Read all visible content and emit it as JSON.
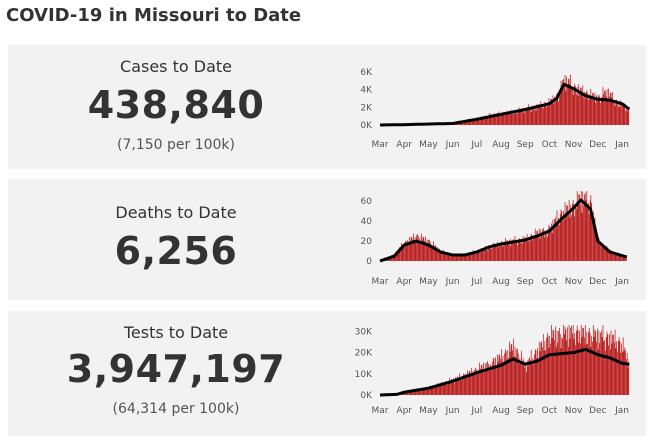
{
  "page": {
    "title": "COVID-19 in Missouri to Date"
  },
  "colors": {
    "bar": "#b30000",
    "line": "#000000",
    "panel": "#f2f2f2"
  },
  "panels": [
    {
      "label": "Cases to Date",
      "value": "438,840",
      "sub": "(7,150 per 100k)"
    },
    {
      "label": "Deaths to Date",
      "value": "6,256",
      "sub": ""
    },
    {
      "label": "Tests to Date",
      "value": "3,947,197",
      "sub": "(64,314 per 100k)"
    }
  ],
  "chart_data": [
    {
      "type": "bar",
      "title": "",
      "months": [
        "Mar",
        "Apr",
        "May",
        "Jun",
        "Jul",
        "Aug",
        "Sep",
        "Oct",
        "Nov",
        "Dec",
        "Jan"
      ],
      "ylim": [
        0,
        7000
      ],
      "yticks": [
        0,
        2000,
        4000,
        6000
      ],
      "ytick_labels": [
        "0K",
        "2K",
        "4K",
        "6K"
      ],
      "bar_profile": [
        [
          0,
          0
        ],
        [
          1,
          40
        ],
        [
          2,
          120
        ],
        [
          3,
          180
        ],
        [
          3.7,
          400
        ],
        [
          4,
          700
        ],
        [
          4.5,
          1100
        ],
        [
          5,
          1300
        ],
        [
          5.5,
          1500
        ],
        [
          6,
          1800
        ],
        [
          6.5,
          2100
        ],
        [
          7,
          2600
        ],
        [
          7.4,
          3500
        ],
        [
          7.6,
          5200
        ],
        [
          7.8,
          4800
        ],
        [
          8,
          4300
        ],
        [
          8.5,
          3600
        ],
        [
          9,
          3100
        ],
        [
          9.4,
          3800
        ],
        [
          9.7,
          2700
        ],
        [
          10,
          2300
        ],
        [
          10.3,
          1600
        ]
      ],
      "trend_profile": [
        [
          0,
          0
        ],
        [
          1,
          40
        ],
        [
          2,
          110
        ],
        [
          3,
          170
        ],
        [
          4,
          650
        ],
        [
          5,
          1200
        ],
        [
          6,
          1750
        ],
        [
          7,
          2400
        ],
        [
          7.3,
          3000
        ],
        [
          7.6,
          4600
        ],
        [
          8,
          4100
        ],
        [
          8.5,
          3300
        ],
        [
          9,
          2900
        ],
        [
          9.5,
          2800
        ],
        [
          10,
          2400
        ],
        [
          10.3,
          1800
        ]
      ]
    },
    {
      "type": "bar",
      "title": "",
      "months": [
        "Mar",
        "Apr",
        "May",
        "Jun",
        "Jul",
        "Aug",
        "Sep",
        "Oct",
        "Nov",
        "Dec",
        "Jan"
      ],
      "ylim": [
        0,
        70
      ],
      "yticks": [
        0,
        20,
        40,
        60
      ],
      "ytick_labels": [
        "0",
        "20",
        "40",
        "60"
      ],
      "bar_profile": [
        [
          0,
          0
        ],
        [
          0.5,
          5
        ],
        [
          1,
          18
        ],
        [
          1.5,
          25
        ],
        [
          2,
          20
        ],
        [
          2.5,
          10
        ],
        [
          3,
          5
        ],
        [
          3.5,
          6
        ],
        [
          4,
          10
        ],
        [
          4.5,
          14
        ],
        [
          5,
          18
        ],
        [
          5.5,
          20
        ],
        [
          6,
          22
        ],
        [
          6.5,
          28
        ],
        [
          7,
          33
        ],
        [
          7.5,
          48
        ],
        [
          8,
          56
        ],
        [
          8.3,
          64
        ],
        [
          8.7,
          60
        ],
        [
          9,
          20
        ],
        [
          9.5,
          10
        ],
        [
          10.2,
          3
        ]
      ],
      "trend_profile": [
        [
          0,
          0
        ],
        [
          0.6,
          5
        ],
        [
          1,
          16
        ],
        [
          1.5,
          20
        ],
        [
          2,
          16
        ],
        [
          2.5,
          9
        ],
        [
          3,
          6
        ],
        [
          3.5,
          6
        ],
        [
          4,
          9
        ],
        [
          4.5,
          14
        ],
        [
          5,
          17
        ],
        [
          5.5,
          19
        ],
        [
          6,
          21
        ],
        [
          6.5,
          25
        ],
        [
          7,
          30
        ],
        [
          7.5,
          42
        ],
        [
          8,
          53
        ],
        [
          8.3,
          61
        ],
        [
          8.7,
          52
        ],
        [
          9,
          20
        ],
        [
          9.5,
          9
        ],
        [
          10.2,
          4
        ]
      ]
    },
    {
      "type": "bar",
      "title": "",
      "months": [
        "Mar",
        "Apr",
        "May",
        "Jun",
        "Jul",
        "Aug",
        "Sep",
        "Oct",
        "Nov",
        "Dec",
        "Jan"
      ],
      "ylim": [
        0,
        33000
      ],
      "yticks": [
        0,
        10000,
        20000,
        30000
      ],
      "ytick_labels": [
        "0K",
        "10K",
        "20K",
        "30K"
      ],
      "bar_profile": [
        [
          0,
          0
        ],
        [
          0.7,
          300
        ],
        [
          1,
          1500
        ],
        [
          2,
          3500
        ],
        [
          3,
          7000
        ],
        [
          4,
          12000
        ],
        [
          5,
          18000
        ],
        [
          5.5,
          23000
        ],
        [
          6,
          14000
        ],
        [
          6.5,
          21000
        ],
        [
          7,
          28000
        ],
        [
          7.5,
          29000
        ],
        [
          8,
          30000
        ],
        [
          8.5,
          29000
        ],
        [
          9,
          28000
        ],
        [
          9.5,
          27000
        ],
        [
          10,
          24000
        ],
        [
          10.3,
          14000
        ]
      ],
      "trend_profile": [
        [
          0,
          0
        ],
        [
          0.7,
          300
        ],
        [
          1,
          1300
        ],
        [
          2,
          3200
        ],
        [
          3,
          6500
        ],
        [
          4,
          10500
        ],
        [
          5,
          14000
        ],
        [
          5.5,
          17000
        ],
        [
          6,
          14500
        ],
        [
          6.5,
          16000
        ],
        [
          7,
          19000
        ],
        [
          7.5,
          19500
        ],
        [
          8,
          20000
        ],
        [
          8.5,
          21500
        ],
        [
          9,
          19000
        ],
        [
          9.5,
          17500
        ],
        [
          10,
          15000
        ],
        [
          10.3,
          14500
        ]
      ]
    }
  ]
}
